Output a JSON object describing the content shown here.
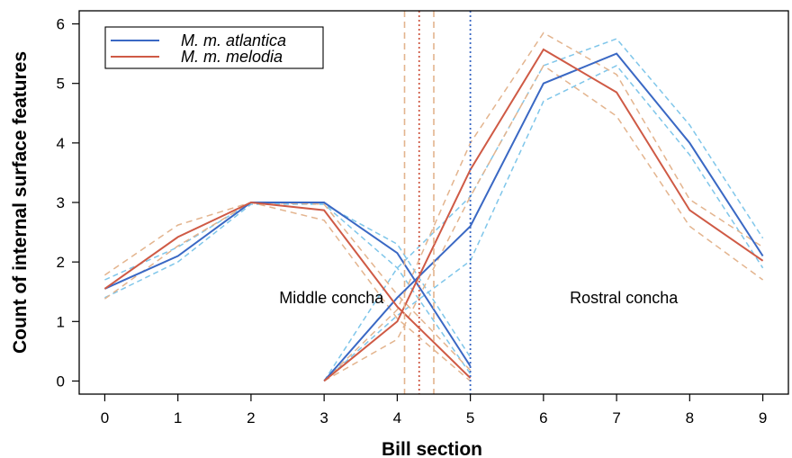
{
  "chart_data": {
    "type": "line",
    "title": "",
    "xlabel": "Bill section",
    "ylabel": "Count of internal surface features",
    "xlim": [
      -0.35,
      9.35
    ],
    "ylim": [
      -0.22,
      6.22
    ],
    "x_ticks": [
      "0",
      "1",
      "2",
      "3",
      "4",
      "5",
      "6",
      "7",
      "8",
      "9"
    ],
    "y_ticks": [
      "0",
      "1",
      "2",
      "3",
      "4",
      "5",
      "6"
    ],
    "grid": false,
    "legend_position": "top-left",
    "legend": [
      {
        "label": "M. m. atlantica",
        "color": "#3a68c4"
      },
      {
        "label": "M. m. melodia",
        "color": "#cf5a45"
      }
    ],
    "annotations": [
      {
        "text": "Middle concha",
        "x": 3.1,
        "y": 1.4
      },
      {
        "text": "Rostral concha",
        "x": 7.1,
        "y": 1.4
      }
    ],
    "series": [
      {
        "name": "M. m. atlantica",
        "style": "solid",
        "color": "#3a68c4",
        "x": [
          0,
          1,
          2,
          3,
          4,
          5
        ],
        "values": [
          1.55,
          2.1,
          3.0,
          3.0,
          2.15,
          0.25
        ]
      },
      {
        "name": "M. m. atlantica",
        "style": "solid",
        "color": "#3a68c4",
        "x": [
          3,
          4,
          5,
          6,
          7,
          8,
          9
        ],
        "values": [
          0.0,
          1.4,
          2.6,
          5.0,
          5.5,
          4.0,
          2.1
        ]
      },
      {
        "name": "M. m. melodia",
        "style": "solid",
        "color": "#cf5a45",
        "x": [
          0,
          1,
          2,
          3,
          4,
          5
        ],
        "values": [
          1.55,
          2.42,
          3.0,
          2.87,
          1.25,
          0.05
        ]
      },
      {
        "name": "M. m. melodia",
        "style": "solid",
        "color": "#cf5a45",
        "x": [
          3,
          4,
          5,
          6,
          7,
          8,
          9
        ],
        "values": [
          0.0,
          1.0,
          3.55,
          5.57,
          4.85,
          2.87,
          2.02
        ]
      },
      {
        "style": "dashed",
        "color": "#7fc6ea",
        "x": [
          0,
          1,
          2,
          3,
          4,
          5
        ],
        "values": [
          1.4,
          2.0,
          2.97,
          2.97,
          2.3,
          0.4
        ]
      },
      {
        "style": "dashed",
        "color": "#7fc6ea",
        "x": [
          0,
          1,
          2,
          3,
          4,
          5
        ],
        "values": [
          1.7,
          2.25,
          3.0,
          2.97,
          1.9,
          0.12
        ]
      },
      {
        "style": "dashed",
        "color": "#7fc6ea",
        "x": [
          3,
          4,
          5,
          6,
          7,
          8,
          9
        ],
        "values": [
          0.0,
          1.9,
          3.1,
          5.3,
          5.75,
          4.3,
          2.4
        ]
      },
      {
        "style": "dashed",
        "color": "#7fc6ea",
        "x": [
          3,
          4,
          5,
          6,
          7,
          8,
          9
        ],
        "values": [
          0.0,
          1.1,
          2.02,
          4.7,
          5.3,
          3.8,
          1.9
        ]
      },
      {
        "style": "dashed",
        "color": "#e3b48e",
        "x": [
          0,
          1,
          2,
          3,
          4,
          5
        ],
        "values": [
          1.38,
          2.27,
          3.0,
          2.7,
          1.05,
          0.0
        ]
      },
      {
        "style": "dashed",
        "color": "#e3b48e",
        "x": [
          0,
          1,
          2,
          3,
          4,
          5
        ],
        "values": [
          1.78,
          2.62,
          3.0,
          2.97,
          1.45,
          0.18
        ]
      },
      {
        "style": "dashed",
        "color": "#e3b48e",
        "x": [
          3,
          4,
          5,
          6,
          7,
          8,
          9
        ],
        "values": [
          0.0,
          1.2,
          4.0,
          5.85,
          5.15,
          3.05,
          2.25
        ]
      },
      {
        "style": "dashed",
        "color": "#e3b48e",
        "x": [
          3,
          4,
          5,
          6,
          7,
          8,
          9
        ],
        "values": [
          0.0,
          0.7,
          3.1,
          5.3,
          4.45,
          2.6,
          1.7
        ]
      }
    ],
    "vertical_lines": [
      {
        "x": 4.1,
        "style": "dashed",
        "color": "#e3b48e"
      },
      {
        "x": 4.3,
        "style": "dotted",
        "color": "#cf5a45"
      },
      {
        "x": 4.5,
        "style": "dashed",
        "color": "#e3b48e"
      },
      {
        "x": 5.0,
        "style": "dotted",
        "color": "#3a68c4"
      }
    ]
  }
}
